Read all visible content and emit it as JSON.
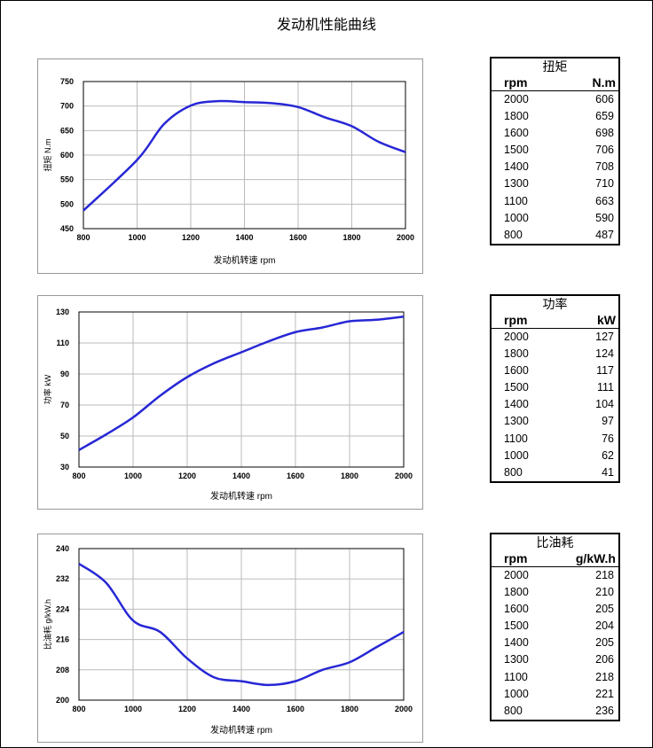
{
  "page_title": "发动机性能曲线",
  "colors": {
    "line": "#2727d6",
    "grid": "#bbbbbb",
    "axis": "#000000"
  },
  "tables": [
    {
      "title": "扭矩",
      "col_rpm": "rpm",
      "col_unit": "N.m",
      "rows": [
        [
          "2000",
          "606"
        ],
        [
          "1800",
          "659"
        ],
        [
          "1600",
          "698"
        ],
        [
          "1500",
          "706"
        ],
        [
          "1400",
          "708"
        ],
        [
          "1300",
          "710"
        ],
        [
          "1100",
          "663"
        ],
        [
          "1000",
          "590"
        ],
        [
          "800",
          "487"
        ]
      ]
    },
    {
      "title": "功率",
      "col_rpm": "rpm",
      "col_unit": "kW",
      "rows": [
        [
          "2000",
          "127"
        ],
        [
          "1800",
          "124"
        ],
        [
          "1600",
          "117"
        ],
        [
          "1500",
          "111"
        ],
        [
          "1400",
          "104"
        ],
        [
          "1300",
          "97"
        ],
        [
          "1100",
          "76"
        ],
        [
          "1000",
          "62"
        ],
        [
          "800",
          "41"
        ]
      ]
    },
    {
      "title": "比油耗",
      "col_rpm": "rpm",
      "col_unit": "g/kW.h",
      "rows": [
        [
          "2000",
          "218"
        ],
        [
          "1800",
          "210"
        ],
        [
          "1600",
          "205"
        ],
        [
          "1500",
          "204"
        ],
        [
          "1400",
          "205"
        ],
        [
          "1300",
          "206"
        ],
        [
          "1100",
          "218"
        ],
        [
          "1000",
          "221"
        ],
        [
          "800",
          "236"
        ]
      ]
    }
  ],
  "chart_data": [
    {
      "type": "line",
      "title": "",
      "xlabel": "发动机转速  rpm",
      "ylabel": "扭矩  N.m",
      "xlim": [
        800,
        2000
      ],
      "ylim": [
        450,
        750
      ],
      "grid": true,
      "xticks": [
        "800",
        "1000",
        "1200",
        "1400",
        "1600",
        "1800",
        "2000"
      ],
      "yticks": [
        "450",
        "500",
        "550",
        "600",
        "650",
        "700",
        "750"
      ],
      "x": [
        800,
        1000,
        1100,
        1200,
        1300,
        1400,
        1500,
        1600,
        1700,
        1800,
        1900,
        2000
      ],
      "y": [
        487,
        590,
        663,
        701,
        710,
        708,
        706,
        698,
        677,
        659,
        627,
        606
      ]
    },
    {
      "type": "line",
      "title": "",
      "xlabel": "发动机转速  rpm",
      "ylabel": "功率  kW",
      "xlim": [
        800,
        2000
      ],
      "ylim": [
        30,
        130
      ],
      "grid": true,
      "xticks": [
        "800",
        "1000",
        "1200",
        "1400",
        "1600",
        "1800",
        "2000"
      ],
      "yticks": [
        "30",
        "50",
        "70",
        "90",
        "110",
        "130"
      ],
      "x": [
        800,
        900,
        1000,
        1100,
        1200,
        1300,
        1400,
        1500,
        1600,
        1700,
        1800,
        1900,
        2000
      ],
      "y": [
        41,
        51,
        62,
        76,
        88,
        97,
        104,
        111,
        117,
        120,
        124,
        125,
        127
      ]
    },
    {
      "type": "line",
      "title": "",
      "xlabel": "发动机转速  rpm",
      "ylabel": "比油耗  g/kW.h",
      "xlim": [
        800,
        2000
      ],
      "ylim": [
        200,
        240
      ],
      "grid": true,
      "xticks": [
        "800",
        "1000",
        "1200",
        "1400",
        "1600",
        "1800",
        "2000"
      ],
      "yticks": [
        "200",
        "208",
        "216",
        "224",
        "232",
        "240"
      ],
      "x": [
        800,
        900,
        1000,
        1100,
        1200,
        1300,
        1400,
        1500,
        1600,
        1700,
        1800,
        1900,
        2000
      ],
      "y": [
        236,
        231,
        221,
        218,
        211,
        206,
        205,
        204,
        205,
        208,
        210,
        214,
        218
      ]
    }
  ]
}
